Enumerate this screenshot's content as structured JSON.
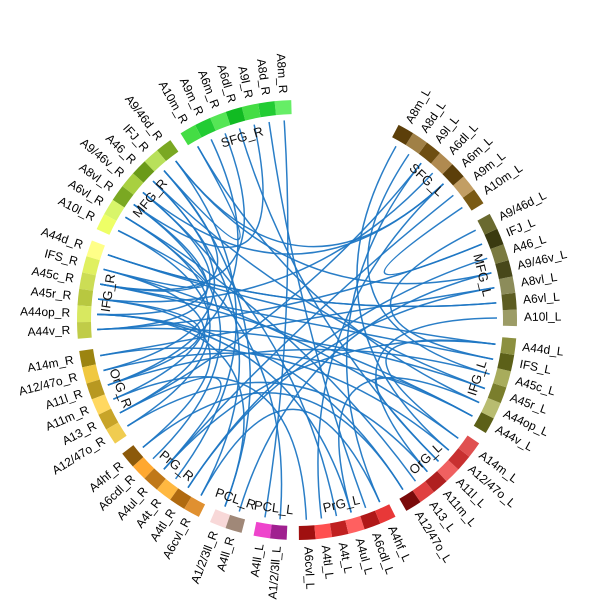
{
  "colors": {
    "link": "#1f77c4",
    "sfg_r": [
      "#66ee66",
      "#22cc33",
      "#44dd44",
      "#11bb22",
      "#55e655",
      "#22cc33",
      "#44dd44"
    ],
    "sfg_l": [
      "#7a5a14",
      "#c29e64",
      "#5c3f0a",
      "#b08a50",
      "#6e4e12",
      "#a08046",
      "#5c3f0a"
    ],
    "mfg_r": [
      "#7aa822",
      "#b8e05a",
      "#6a9a18",
      "#a8d040",
      "#7aa822",
      "#d8f56a",
      "#eeff66"
    ],
    "mfg_l": [
      "#9c9c66",
      "#5c5c22",
      "#8c8c5a",
      "#48481a",
      "#7a7a40",
      "#3a3a10",
      "#6a6a30"
    ],
    "ifg_r": [
      "#ffff88",
      "#e0f060",
      "#ccdd55",
      "#b8c840",
      "#d8e860",
      "#c0cc48"
    ],
    "ifg_l": [
      "#5c6018",
      "#b8bc70",
      "#7a7e2c",
      "#a8ac5c",
      "#5c6018",
      "#8c9040"
    ],
    "org_r": [
      "#9c8410",
      "#f0c840",
      "#b89820",
      "#ffd860",
      "#c8a428",
      "#f0cc50"
    ],
    "org_l": [
      "#7a0a0a",
      "#e04040",
      "#b02020",
      "#f06060",
      "#c83030",
      "#e05050"
    ],
    "prg_r": [
      "#8c5a0a",
      "#ffa830",
      "#c07818",
      "#ffb840",
      "#b06a10",
      "#e09030"
    ],
    "prg_l": [
      "#a01010",
      "#ff5050",
      "#c02020",
      "#ff6060",
      "#b01818",
      "#e83838"
    ],
    "pcl_r": [
      "#f8d8d8",
      "#a08878"
    ],
    "pcl_l": [
      "#ee44cc",
      "#a02090"
    ]
  },
  "regions": [
    {
      "name": "SFG_R",
      "color_key": "sfg_r",
      "labels": [
        "A8m_R",
        "A8d_R",
        "A9l_R",
        "A6dl_R",
        "A6m_R",
        "A9m_R",
        "A10m_R"
      ]
    },
    {
      "name": "MFG_R",
      "color_key": "mfg_r",
      "labels": [
        "A9/46d_R",
        "IFJ_R",
        "A46_R",
        "A9/46v_R",
        "A8vl_R",
        "A6vl_R",
        "A10l_R"
      ]
    },
    {
      "name": "IFG_R",
      "color_key": "ifg_r",
      "labels": [
        "A44d_R",
        "IFS_R",
        "A45c_R",
        "A45r_R",
        "A44op_R",
        "A44v_R"
      ]
    },
    {
      "name": "OrG_R",
      "color_key": "org_r",
      "labels": [
        "A14m_R",
        "A12/47o_R",
        "A11l_R",
        "A11m_R",
        "A13_R",
        "A12/47o_R"
      ]
    },
    {
      "name": "PrG_R",
      "color_key": "prg_r",
      "labels": [
        "A4hf_R",
        "A6cdl_R",
        "A4ul_R",
        "A4t_R",
        "A4tl_R",
        "A6cvl_R"
      ]
    },
    {
      "name": "PCL_R",
      "color_key": "pcl_r",
      "labels": [
        "A1/2/3ll_R",
        "A4ll_R"
      ]
    },
    {
      "name": "PCL_L",
      "color_key": "pcl_l",
      "labels": [
        "A4ll_L",
        "A1/2/3ll_L"
      ]
    },
    {
      "name": "PrG_L",
      "color_key": "prg_l",
      "labels": [
        "A6cvl_L",
        "A4tl_L",
        "A4t_L",
        "A4ul_L",
        "A6cdl_L",
        "A4hf_L"
      ]
    },
    {
      "name": "OrG_L",
      "color_key": "org_l",
      "labels": [
        "A12/47o_L",
        "A13_L",
        "A11m_L",
        "A11l_L",
        "A12/47o_L",
        "A14m_L"
      ]
    },
    {
      "name": "IFG_L",
      "color_key": "ifg_l",
      "labels": [
        "A44v_L",
        "A44op_L",
        "A45r_L",
        "A45c_L",
        "IFS_L",
        "A44d_L"
      ]
    },
    {
      "name": "MFG_L",
      "color_key": "mfg_l",
      "labels": [
        "A10l_L",
        "A6vl_L",
        "A8vl_L",
        "A9/46v_L",
        "A46_L",
        "IFJ_L",
        "A9/46d_L"
      ]
    },
    {
      "name": "SFG_L",
      "color_key": "sfg_l",
      "labels": [
        "A10m_L",
        "A9m_L",
        "A6m_L",
        "A6dl_L",
        "A9l_L",
        "A8d_L",
        "A8m_L"
      ]
    }
  ],
  "connections": [
    [
      "MFG_R",
      0,
      "PrG_R",
      3
    ],
    [
      "MFG_R",
      1,
      "IFG_R",
      2
    ],
    [
      "MFG_R",
      2,
      "OrG_R",
      1
    ],
    [
      "MFG_R",
      3,
      "IFG_R",
      4
    ],
    [
      "MFG_R",
      4,
      "PrG_R",
      1
    ],
    [
      "MFG_R",
      5,
      "OrG_R",
      3
    ],
    [
      "MFG_R",
      6,
      "IFG_R",
      1
    ],
    [
      "MFG_R",
      0,
      "MFG_L",
      3
    ],
    [
      "MFG_R",
      2,
      "IFG_L",
      2
    ],
    [
      "MFG_R",
      5,
      "OrG_L",
      1
    ],
    [
      "MFG_R",
      3,
      "PrG_L",
      2
    ],
    [
      "MFG_R",
      1,
      "PCL_R",
      0
    ],
    [
      "MFG_R",
      4,
      "IFG_R",
      5
    ],
    [
      "MFG_R",
      6,
      "OrG_R",
      5
    ],
    [
      "MFG_R",
      2,
      "PrG_R",
      5
    ],
    [
      "MFG_R",
      0,
      "SFG_L",
      2
    ],
    [
      "SFG_R",
      2,
      "MFG_R",
      4
    ],
    [
      "SFG_R",
      4,
      "IFG_R",
      2
    ],
    [
      "SFG_R",
      5,
      "OrG_R",
      2
    ],
    [
      "SFG_R",
      1,
      "PrG_L",
      4
    ],
    [
      "SFG_R",
      6,
      "IFG_L",
      1
    ],
    [
      "SFG_R",
      3,
      "OrG_L",
      3
    ],
    [
      "SFG_R",
      0,
      "PCL_L",
      0
    ],
    [
      "SFG_R",
      6,
      "MFG_R",
      1
    ],
    [
      "SFG_L",
      1,
      "PrG_R",
      2
    ],
    [
      "SFG_L",
      3,
      "IFG_R",
      3
    ],
    [
      "SFG_L",
      4,
      "OrG_R",
      4
    ],
    [
      "SFG_L",
      5,
      "IFG_L",
      3
    ],
    [
      "SFG_L",
      0,
      "MFG_L",
      5
    ],
    [
      "SFG_L",
      6,
      "OrG_L",
      4
    ],
    [
      "SFG_L",
      2,
      "PrG_L",
      1
    ],
    [
      "SFG_L",
      2,
      "MFG_R",
      3
    ],
    [
      "MFG_L",
      1,
      "IFG_R",
      0
    ],
    [
      "MFG_L",
      2,
      "OrG_R",
      0
    ],
    [
      "MFG_L",
      4,
      "PrG_R",
      4
    ],
    [
      "MFG_L",
      6,
      "IFG_L",
      4
    ],
    [
      "MFG_L",
      0,
      "OrG_L",
      2
    ],
    [
      "MFG_L",
      3,
      "PCL_R",
      1
    ],
    [
      "MFG_L",
      5,
      "IFG_R",
      5
    ],
    [
      "IFG_R",
      0,
      "IFG_L",
      5
    ],
    [
      "IFG_R",
      1,
      "OrG_L",
      5
    ],
    [
      "IFG_R",
      2,
      "IFG_L",
      0
    ],
    [
      "IFG_R",
      3,
      "OrG_R",
      2
    ],
    [
      "IFG_R",
      4,
      "PrG_L",
      3
    ],
    [
      "IFG_R",
      5,
      "IFG_L",
      2
    ],
    [
      "IFG_R",
      1,
      "OrG_R",
      4
    ],
    [
      "IFG_R",
      3,
      "PrG_R",
      0
    ],
    [
      "IFG_R",
      0,
      "MFG_L",
      1
    ],
    [
      "IFG_R",
      4,
      "OrG_L",
      0
    ],
    [
      "IFG_R",
      2,
      "IFG_L",
      4
    ],
    [
      "OrG_R",
      0,
      "OrG_L",
      4
    ],
    [
      "OrG_R",
      1,
      "IFG_L",
      0
    ],
    [
      "OrG_R",
      3,
      "PrG_L",
      0
    ],
    [
      "OrG_R",
      5,
      "OrG_L",
      2
    ],
    [
      "OrG_R",
      2,
      "IFG_L",
      3
    ],
    [
      "OrG_R",
      4,
      "PrG_R",
      2
    ],
    [
      "PrG_R",
      0,
      "OrG_L",
      0
    ],
    [
      "PrG_R",
      2,
      "IFG_L",
      5
    ],
    [
      "PrG_R",
      4,
      "MFG_L",
      2
    ],
    [
      "PrG_R",
      5,
      "PrG_L",
      5
    ],
    [
      "PCL_R",
      0,
      "IFG_R",
      4
    ],
    [
      "PCL_L",
      1,
      "MFG_R",
      5
    ],
    [
      "PrG_L",
      3,
      "IFG_L",
      1
    ],
    [
      "OrG_L",
      5,
      "IFG_L",
      5
    ],
    [
      "IFG_L",
      0,
      "OrG_L",
      3
    ],
    [
      "PrG_L",
      5,
      "SFG_L",
      4
    ]
  ]
}
